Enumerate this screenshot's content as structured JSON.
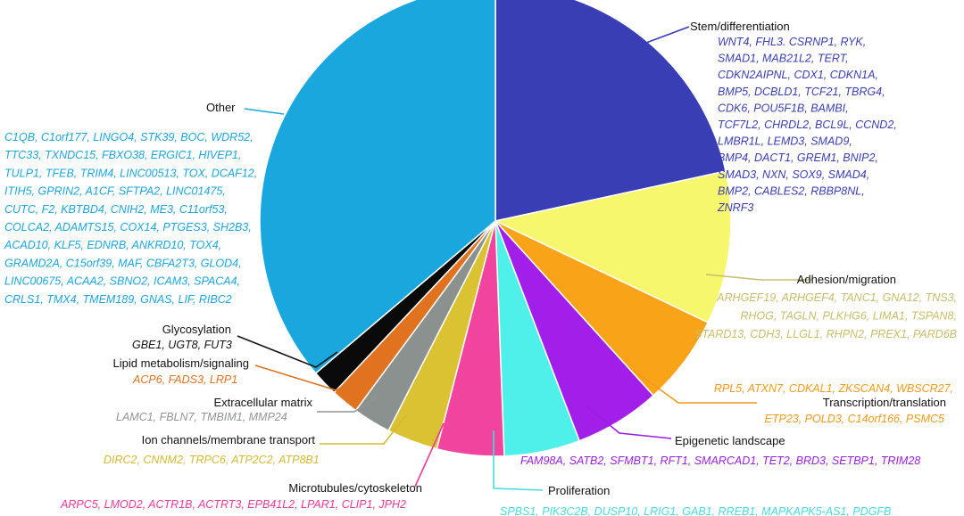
{
  "chart_data": {
    "type": "pie",
    "slices": [
      {
        "name": "Stem/differentiation",
        "value": 21.6,
        "color": "#3a3eb5",
        "genes": [
          "WNT4, FHL3. CSRNP1, RYK,",
          "SMAD1, MAB21L2, TERT,",
          "CDKN2AIPNL, CDX1, CDKN1A,",
          "BMP5, DCBLD1, TCF21, TBRG4,",
          "CDK6, POU5F1B, BAMBI,",
          "TCF7L2, CHRDL2, BCL9L, CCND2,",
          "LMBR1L, LEMD3, SMAD9,",
          "BMP4, DACT1, GREM1, BNIP2,",
          "SMAD3, NXN, SOX9, SMAD4,",
          "BMP2, CABLES2, RBBP8NL,",
          "ZNRF3"
        ]
      },
      {
        "name": "Adhesion/migration",
        "value": 10.5,
        "color": "#f7f76e",
        "genes": [
          "ARHGEF19, ARHGEF4, TANC1, GNA12, TNS3,",
          "RHOG, TAGLN, PLKHG6, LIMA1, TSPAN8,",
          "STARD13, CDH3, LLGL1, RHPN2, PREX1, PARD6B"
        ]
      },
      {
        "name": "Transcription/translation",
        "value": 6.2,
        "color": "#f9a418",
        "genes": [
          "RPL5, ATXN7, CDKAL1, ZKSCAN4, WBSCR27,",
          "ETP23, POLD3, C14orf166, PSMC5"
        ]
      },
      {
        "name": "Epigenetic landscape",
        "value": 5.9,
        "color": "#a11fe8",
        "genes": [
          "FAM98A, SATB2, SFMBT1, RFT1, SMARCAD1, TET2, BRD3, SETBP1, TRIM28"
        ]
      },
      {
        "name": "Proliferation",
        "value": 5.2,
        "color": "#4ff0ea",
        "genes": [
          "SPBS1, PIK3C2B, DUSP10, LRIG1, GAB1, RREB1, MAPKAPK5-AS1, PDGFB"
        ]
      },
      {
        "name": "Microtubules/cytoskeleton",
        "value": 4.6,
        "color": "#f0449e",
        "genes": [
          "ARPC5, LMOD2, ACTR1B, ACTRT3, EPB41L2, LPAR1, CLIP1, JPH2"
        ]
      },
      {
        "name": "Ion channels/membrane transport",
        "value": 3.5,
        "color": "#dbc232",
        "genes": [
          "DIRC2, CNNM2, TRPC6, ATP2C2, ATP8B1"
        ]
      },
      {
        "name": "Extracellular matrix",
        "value": 2.6,
        "color": "#8a918e",
        "genes": [
          "LAMC1, FBLN7, TMBIM1, MMP24"
        ]
      },
      {
        "name": "Lipid metabolism/signaling",
        "value": 1.9,
        "color": "#e07220",
        "genes": [
          "ACP6, FADS3, LRP1"
        ]
      },
      {
        "name": "Glycosylation",
        "value": 1.8,
        "color": "#0a0a0a",
        "genes": [
          "GBE1, UGT8, FUT3"
        ]
      },
      {
        "name": "Other",
        "value": 36.2,
        "color": "#1aa7de",
        "genes": [
          "C1QB, C1orf177, LINGO4, STK39, BOC, WDR52,",
          "TTC33, TXNDC15, FBXO38, ERGIC1, HIVEP1,",
          "TULP1, TFEB, TRIM4, LINC00513, TOX, DCAF12,",
          "ITIH5, GPRIN2, A1CF, SFTPA2, LINC01475,",
          "CUTC, F2, KBTBD4, CNIH2, ME3, C11orf53,",
          "COLCA2, ADAMTS15, COX14, PTGES3, SH2B3,",
          "ACAD10, KLF5, EDNRB, ANKRD10, TOX4,",
          "GRAMD2A, C15orf39, MAF, CBFA2T3, GLOD4,",
          "LINC00675, ACAA2, SBNO2, ICAM3, SPACA4,",
          "CRLS1, TMX4, TMEM189, GNAS, LIF, RIBC2"
        ]
      }
    ],
    "label_colors": {
      "Stem/differentiation": "#3a3eb5",
      "Adhesion/migration": "#c9bd6a",
      "Transcription/translation": "#f29a18",
      "Epigenetic landscape": "#9a1ee0",
      "Proliferation": "#45dde0",
      "Microtubules/cytoskeleton": "#ee3a97",
      "Ion channels/membrane transport": "#d4ba2e",
      "Extracellular matrix": "#8f9593",
      "Lipid metabolism/signaling": "#e07220",
      "Glycosylation": "#111111",
      "Other": "#1aa7de"
    }
  }
}
